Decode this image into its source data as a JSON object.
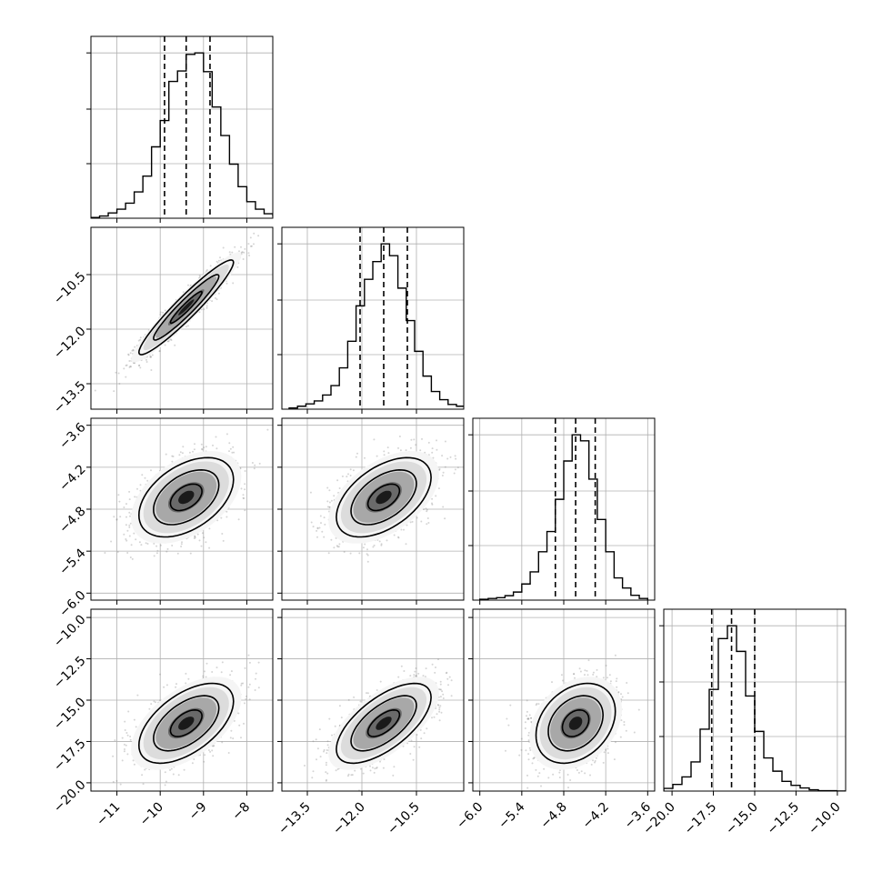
{
  "chart_data": {
    "type": "corner",
    "n_params": 4,
    "ranges": [
      [
        -11.6,
        -7.4
      ],
      [
        -14.2,
        -9.2
      ],
      [
        -6.1,
        -3.5
      ],
      [
        -20.5,
        -9.5
      ]
    ],
    "ticks": [
      {
        "values": [
          -11,
          -10,
          -9,
          -8
        ],
        "labels": [
          "−11",
          "−10",
          "−9",
          "−8"
        ]
      },
      {
        "values": [
          -13.5,
          -12.0,
          -10.5
        ],
        "labels": [
          "−13.5",
          "−12.0",
          "−10.5"
        ]
      },
      {
        "values": [
          -6.0,
          -5.4,
          -4.8,
          -4.2,
          -3.6
        ],
        "labels": [
          "−6.0",
          "−5.4",
          "−4.8",
          "−4.2",
          "−3.6"
        ]
      },
      {
        "values": [
          -20.0,
          -17.5,
          -15.0,
          -12.5,
          -10.0
        ],
        "labels": [
          "−20.0",
          "−17.5",
          "−15.0",
          "−12.5",
          "−10.0"
        ]
      }
    ],
    "means": [
      -9.4,
      -11.4,
      -4.63,
      -16.4
    ],
    "sds": [
      0.52,
      0.62,
      0.27,
      1.15
    ],
    "quantiles": [
      [
        -9.9,
        -9.4,
        -8.85
      ],
      [
        -12.05,
        -11.4,
        -10.75
      ],
      [
        -4.92,
        -4.63,
        -4.35
      ],
      [
        -17.6,
        -16.4,
        -15.0
      ]
    ],
    "correlations": [
      [
        1.0,
        0.95,
        0.45,
        0.55
      ],
      [
        0.95,
        1.0,
        0.5,
        0.65
      ],
      [
        0.45,
        0.5,
        1.0,
        0.3
      ],
      [
        0.55,
        0.65,
        0.3,
        1.0
      ]
    ],
    "histograms": [
      {
        "edges_start": -11.6,
        "bin_width": 0.2,
        "counts": [
          1,
          3,
          7,
          12,
          20,
          35,
          56,
          95,
          130,
          182,
          196,
          218,
          220,
          195,
          148,
          110,
          72,
          42,
          22,
          12,
          6,
          3
        ]
      },
      {
        "edges_start": -14.0,
        "bin_width": 0.23,
        "counts": [
          2,
          5,
          9,
          14,
          24,
          40,
          70,
          115,
          175,
          220,
          250,
          280,
          260,
          205,
          150,
          98,
          56,
          30,
          16,
          8,
          5,
          2
        ]
      },
      {
        "edges_start": -6.0,
        "bin_width": 0.12,
        "counts": [
          2,
          4,
          6,
          11,
          20,
          40,
          70,
          120,
          170,
          250,
          345,
          410,
          395,
          300,
          200,
          120,
          55,
          30,
          12,
          4
        ]
      },
      {
        "edges_start": -20.5,
        "bin_width": 0.55,
        "counts": [
          6,
          15,
          32,
          66,
          140,
          230,
          345,
          374,
          316,
          215,
          135,
          75,
          45,
          22,
          13,
          7,
          3,
          1,
          1,
          0
        ]
      }
    ],
    "grid": true,
    "contour_levels": 3,
    "legend": null,
    "title": "",
    "xlabel": "",
    "ylabel": ""
  }
}
